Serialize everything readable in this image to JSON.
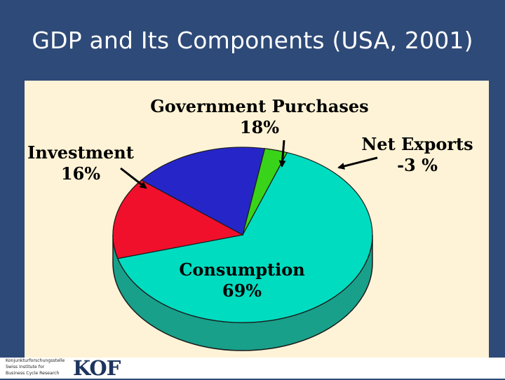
{
  "title": "GDP and Its Components (USA, 2001)",
  "colors": {
    "background": "#2e4a78",
    "panel": "#fef3d6",
    "consumption": "#00dcc0",
    "consumption_side": "#18a08a",
    "investment": "#f0102c",
    "government": "#2626c8",
    "net_exports": "#39d41a"
  },
  "chart_data": {
    "type": "pie",
    "title": "",
    "labels": [
      "Consumption",
      "Investment",
      "Government Purchases",
      "Net Exports"
    ],
    "values": [
      69,
      16,
      18,
      -3
    ],
    "value_labels": [
      "69%",
      "16%",
      "18%",
      "-3 %"
    ],
    "style": "3d",
    "legend": "none"
  },
  "footer": {
    "institute_line1": "Konjunkturforschungsstelle",
    "institute_line2": "Swiss Institute for",
    "institute_line3": "Business Cycle Research",
    "logo": "KOF"
  }
}
